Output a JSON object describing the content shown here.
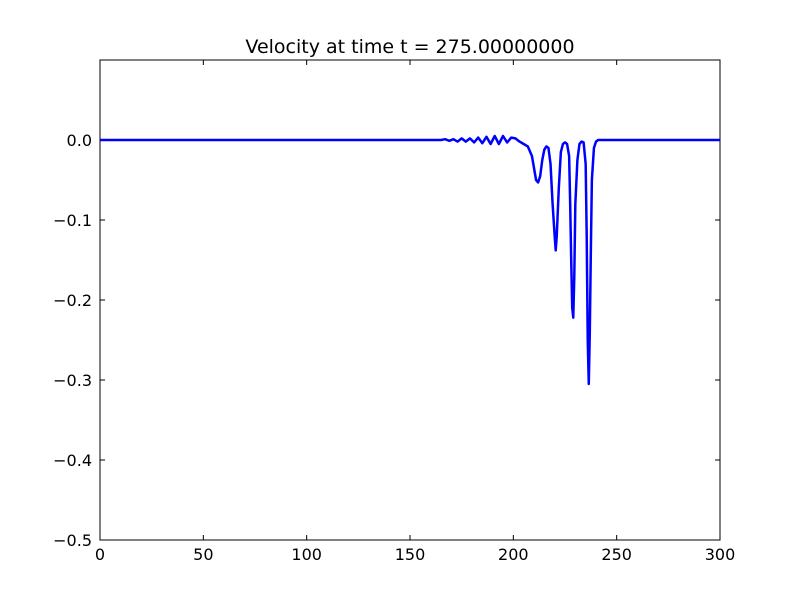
{
  "chart_data": {
    "type": "line",
    "title": "Velocity at time t =   275.00000000",
    "xlabel": "",
    "ylabel": "",
    "xlim": [
      0,
      300
    ],
    "ylim": [
      -0.5,
      0.1
    ],
    "x_ticks": [
      0,
      50,
      100,
      150,
      200,
      250,
      300
    ],
    "x_tick_labels": [
      "0",
      "50",
      "100",
      "150",
      "200",
      "250",
      "300"
    ],
    "y_ticks": [
      0.0,
      -0.1,
      -0.2,
      -0.3,
      -0.4,
      -0.5
    ],
    "y_tick_labels": [
      "0.0",
      "−0.1",
      "−0.2",
      "−0.3",
      "−0.4",
      "−0.5"
    ],
    "grid": false,
    "legend": "none",
    "series": [
      {
        "color": "#0000ff",
        "x": [
          0,
          160,
          165,
          167,
          169,
          171,
          173,
          175,
          177,
          179,
          181,
          183,
          185,
          187,
          189,
          191,
          193,
          195,
          197,
          199,
          201,
          203,
          205,
          207,
          209,
          210,
          211,
          212,
          213,
          214,
          215,
          216,
          217,
          218,
          219,
          220,
          220.5,
          221,
          222,
          223,
          224,
          225,
          226,
          227,
          227.5,
          228,
          228.5,
          229,
          229.5,
          230,
          231,
          232,
          233,
          234,
          235,
          235.5,
          236,
          236.5,
          237,
          237.5,
          238,
          239,
          240,
          241,
          245,
          300
        ],
        "y": [
          0.0,
          0.0,
          0.0,
          0.001,
          -0.001,
          0.001,
          -0.002,
          0.002,
          -0.002,
          0.002,
          -0.003,
          0.003,
          -0.004,
          0.004,
          -0.005,
          0.005,
          -0.005,
          0.005,
          -0.003,
          0.003,
          0.002,
          -0.002,
          -0.005,
          -0.008,
          -0.02,
          -0.035,
          -0.05,
          -0.053,
          -0.045,
          -0.025,
          -0.012,
          -0.008,
          -0.01,
          -0.03,
          -0.08,
          -0.12,
          -0.138,
          -0.12,
          -0.06,
          -0.015,
          -0.005,
          -0.003,
          -0.005,
          -0.02,
          -0.08,
          -0.15,
          -0.21,
          -0.222,
          -0.17,
          -0.08,
          -0.025,
          -0.005,
          -0.002,
          -0.003,
          -0.03,
          -0.12,
          -0.25,
          -0.305,
          -0.24,
          -0.14,
          -0.05,
          -0.01,
          -0.002,
          0.0,
          0.0,
          0.0
        ]
      }
    ]
  }
}
